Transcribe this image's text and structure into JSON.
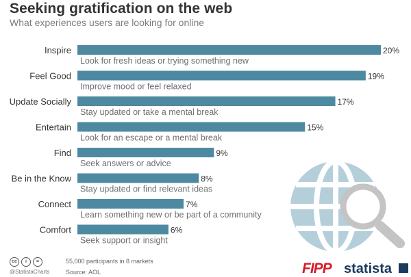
{
  "header": {
    "title": "Seeking gratification on the web",
    "subtitle": "What experiences users are looking for online"
  },
  "chart_data": {
    "type": "bar",
    "orientation": "horizontal",
    "title": "Seeking gratification on the web",
    "subtitle": "What experiences users are looking for online",
    "categories": [
      "Inspire",
      "Feel Good",
      "Update Socially",
      "Entertain",
      "Find",
      "Be in the Know",
      "Connect",
      "Comfort"
    ],
    "values": [
      20,
      19,
      17,
      15,
      9,
      8,
      7,
      6
    ],
    "value_labels": [
      "20%",
      "19%",
      "17%",
      "15%",
      "9%",
      "8%",
      "7%",
      "6%"
    ],
    "descriptions": [
      "Look for fresh ideas or trying something new",
      "Improve mood or feel relaxed",
      "Stay updated or take a mental break",
      "Look for an escape or a mental break",
      "Seek answers or advice",
      "Stay updated or find relevant ideas",
      "Learn something new or be part of a community",
      "Seek support or insight"
    ],
    "xlim": [
      0,
      20
    ],
    "grid": false,
    "bar_color": "#4d8aa1",
    "illustration": "globe-with-magnifier-icon"
  },
  "footer": {
    "note": "55,000 participants in 8 markets",
    "source": "Source: AOL",
    "handle": "@StatistaCharts",
    "logo_left": "FIPP",
    "logo_right": "statista"
  },
  "colors": {
    "bar": "#4d8aa1",
    "globe": "#b5cfda",
    "magnifier": "#c4c4c4",
    "title": "#333333",
    "subtitle": "#7d7d7d"
  }
}
